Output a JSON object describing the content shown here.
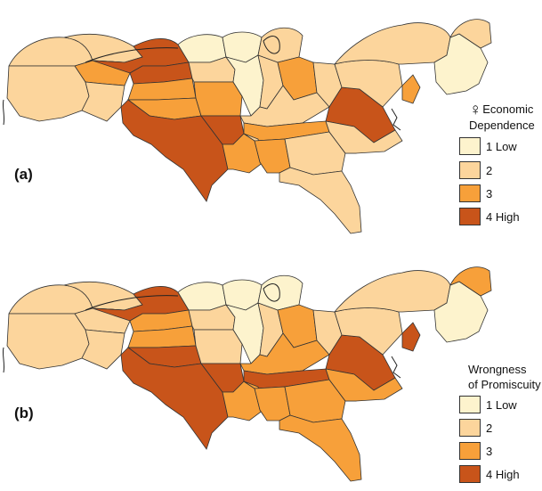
{
  "colors": {
    "level_1": "#fdf3cd",
    "level_2": "#fcd59c",
    "level_3": "#f7a03a",
    "level_4": "#c8541a",
    "border": "#333333"
  },
  "panels": [
    {
      "label": "(a)",
      "legend": {
        "title_symbol": "♀",
        "title_lines": [
          "Economic",
          "Dependence"
        ],
        "items": [
          {
            "label": "1 Low",
            "level": 1
          },
          {
            "label": "2",
            "level": 2
          },
          {
            "label": "3",
            "level": 3
          },
          {
            "label": "4 High",
            "level": 4
          }
        ]
      },
      "regions": {
        "pacific_nw": 2,
        "california": 2,
        "mountain_n": 2,
        "mountain_c": 3,
        "mountain_s": 2,
        "dakotas": 4,
        "nebraska": 4,
        "kansas": 3,
        "oklahoma": 3,
        "texas": 4,
        "minnesota": 1,
        "iowa": 2,
        "missouri": 3,
        "arkansas": 4,
        "louisiana": 3,
        "wisconsin": 1,
        "illinois": 1,
        "michigan": 2,
        "indiana": 2,
        "ohio": 3,
        "kentucky": 2,
        "tennessee": 3,
        "mississippi": 2,
        "alabama": 3,
        "georgia": 2,
        "south_carolina": 3,
        "florida": 2,
        "west_virginia": 2,
        "virginia": 4,
        "north_carolina": 2,
        "pennsylvania": 2,
        "new_york": 2,
        "new_england": 1,
        "maine": 2,
        "new_jersey": 3
      }
    },
    {
      "label": "(b)",
      "legend": {
        "title_symbol": "",
        "title_lines": [
          "Wrongness",
          "of Promiscuity"
        ],
        "items": [
          {
            "label": "1 Low",
            "level": 1
          },
          {
            "label": "2",
            "level": 2
          },
          {
            "label": "3",
            "level": 3
          },
          {
            "label": "4 High",
            "level": 4
          }
        ]
      },
      "regions": {
        "pacific_nw": 2,
        "california": 2,
        "mountain_n": 2,
        "mountain_c": 2,
        "mountain_s": 2,
        "dakotas": 4,
        "nebraska": 3,
        "kansas": 3,
        "oklahoma": 4,
        "texas": 4,
        "minnesota": 1,
        "iowa": 2,
        "missouri": 2,
        "arkansas": 4,
        "louisiana": 3,
        "wisconsin": 1,
        "illinois": 1,
        "michigan": 1,
        "indiana": 2,
        "ohio": 3,
        "kentucky": 3,
        "tennessee": 4,
        "mississippi": 3,
        "alabama": 3,
        "georgia": 3,
        "south_carolina": 3,
        "florida": 3,
        "west_virginia": 2,
        "virginia": 4,
        "north_carolina": 3,
        "pennsylvania": 2,
        "new_york": 2,
        "new_england": 1,
        "maine": 3,
        "new_jersey": 4
      }
    }
  ]
}
